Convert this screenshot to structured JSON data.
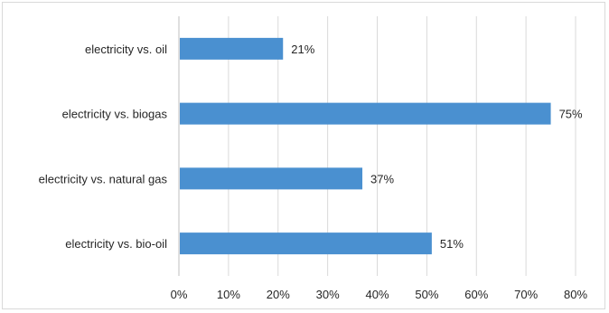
{
  "chart_data": {
    "type": "bar",
    "orientation": "horizontal",
    "categories": [
      "electricity vs. oil",
      "electricity vs. biogas",
      "electricity vs. natural gas",
      "electricity vs. bio-oil"
    ],
    "values": [
      21,
      75,
      37,
      51
    ],
    "value_labels": [
      "21%",
      "75%",
      "37%",
      "51%"
    ],
    "xlim": [
      0,
      80
    ],
    "x_ticks": [
      "0%",
      "10%",
      "20%",
      "30%",
      "40%",
      "50%",
      "60%",
      "70%",
      "80%"
    ],
    "grid": "vertical",
    "bar_color": "#4a90d0",
    "grid_color": "#d9d9d9",
    "title": "",
    "xlabel": "",
    "ylabel": ""
  }
}
